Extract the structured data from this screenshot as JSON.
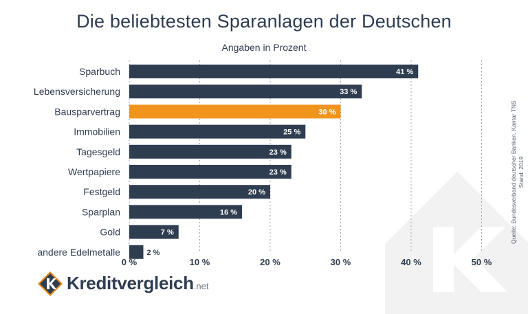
{
  "chart_data": {
    "type": "bar",
    "orientation": "horizontal",
    "title": "Die beliebtesten Sparanlagen der Deutschen",
    "subtitle": "Angaben in Prozent",
    "categories": [
      "Sparbuch",
      "Lebensversicherung",
      "Bausparvertrag",
      "Immobilien",
      "Tagesgeld",
      "Wertpapiere",
      "Festgeld",
      "Sparplan",
      "Gold",
      "andere Edelmetalle"
    ],
    "values": [
      41,
      33,
      30,
      25,
      23,
      23,
      20,
      16,
      7,
      2
    ],
    "value_labels": [
      "41 %",
      "33 %",
      "30 %",
      "25 %",
      "23 %",
      "23 %",
      "20 %",
      "16 %",
      "7 %",
      "2 %"
    ],
    "highlight_index": 2,
    "xlim": [
      0,
      50
    ],
    "x_ticks": [
      0,
      10,
      20,
      30,
      40,
      50
    ],
    "x_tick_labels": [
      "0 %",
      "10 %",
      "20 %",
      "30 %",
      "40 %",
      "50 %"
    ],
    "grid": "vertical-dotted",
    "colors": {
      "bar": "#2f3d50",
      "highlight": "#f0941e",
      "grid": "#9aa3ad"
    }
  },
  "source_lines": [
    "Quelle: Bundesverband deutscher Banken, Kantar TNS",
    "Stand: 2019"
  ],
  "branding": {
    "name": "Kreditvergleich",
    "tld": ".net"
  }
}
